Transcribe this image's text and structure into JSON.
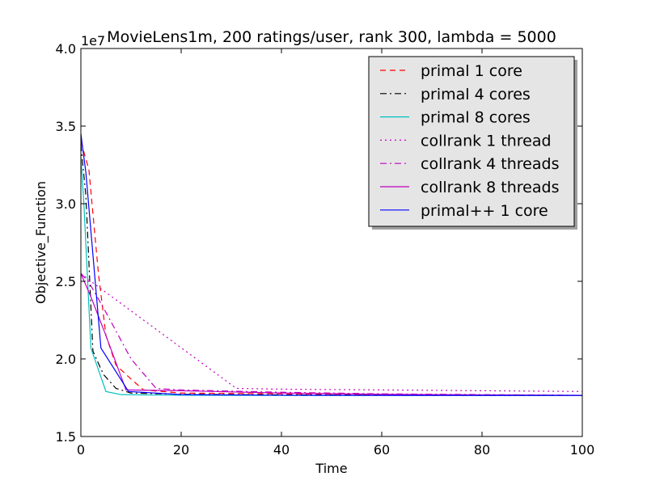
{
  "chart_data": {
    "type": "line",
    "title": "MovieLens1m, 200 ratings/user, rank 300, lambda = 5000",
    "xlabel": "Time",
    "ylabel": "Objective_Function",
    "y_multiplier_label": "1e7",
    "xlim": [
      0,
      100
    ],
    "ylim": [
      1.5,
      4.0
    ],
    "xticks": [
      0,
      20,
      40,
      60,
      80,
      100
    ],
    "xtick_labels": [
      "0",
      "20",
      "40",
      "60",
      "80",
      "100"
    ],
    "yticks": [
      1.5,
      2.0,
      2.5,
      3.0,
      3.5,
      4.0
    ],
    "ytick_labels": [
      "1.5",
      "2.0",
      "2.5",
      "3.0",
      "3.5",
      "4.0"
    ],
    "grid": false,
    "legend_position": "top-right",
    "series": [
      {
        "name": "primal 1 core",
        "color": "#ff0000",
        "dash": "dashed",
        "points": [
          [
            0,
            3.4
          ],
          [
            1.6,
            3.22
          ],
          [
            3.5,
            2.55
          ],
          [
            5.0,
            2.15
          ],
          [
            7.0,
            1.96
          ],
          [
            10.0,
            1.87
          ],
          [
            12.5,
            1.8
          ],
          [
            20,
            1.78
          ],
          [
            40,
            1.775
          ],
          [
            60,
            1.77
          ],
          [
            80,
            1.768
          ],
          [
            100,
            1.765
          ]
        ]
      },
      {
        "name": "primal 4 cores",
        "color": "#000000",
        "dash": "dashdot",
        "points": [
          [
            0,
            3.38
          ],
          [
            1.0,
            3.05
          ],
          [
            2.4,
            2.05
          ],
          [
            4.5,
            1.9
          ],
          [
            7.0,
            1.81
          ],
          [
            10.0,
            1.78
          ],
          [
            20,
            1.772
          ],
          [
            40,
            1.768
          ],
          [
            60,
            1.766
          ],
          [
            80,
            1.765
          ],
          [
            100,
            1.765
          ]
        ]
      },
      {
        "name": "primal 8 cores",
        "color": "#00bfbf",
        "dash": "solid",
        "points": [
          [
            0,
            3.3
          ],
          [
            0.6,
            3.0
          ],
          [
            2.0,
            2.07
          ],
          [
            5.0,
            1.79
          ],
          [
            8.0,
            1.77
          ],
          [
            12,
            1.768
          ],
          [
            20,
            1.766
          ],
          [
            40,
            1.765
          ],
          [
            60,
            1.765
          ],
          [
            80,
            1.765
          ],
          [
            100,
            1.765
          ]
        ]
      },
      {
        "name": "collrank 1 thread",
        "color": "#bf00bf",
        "dash": "dotted",
        "points": [
          [
            0,
            2.55
          ],
          [
            2.0,
            2.5
          ],
          [
            31.0,
            1.81
          ],
          [
            40,
            1.805
          ],
          [
            60,
            1.8
          ],
          [
            80,
            1.795
          ],
          [
            100,
            1.79
          ]
        ]
      },
      {
        "name": "collrank 4 threads",
        "color": "#bf00bf",
        "dash": "dashdot",
        "points": [
          [
            0,
            2.55
          ],
          [
            1.5,
            2.5
          ],
          [
            5.0,
            2.3
          ],
          [
            10.0,
            2.0
          ],
          [
            15.0,
            1.81
          ],
          [
            20,
            1.8
          ],
          [
            40,
            1.785
          ],
          [
            60,
            1.775
          ],
          [
            80,
            1.77
          ],
          [
            100,
            1.765
          ]
        ]
      },
      {
        "name": "collrank 8 threads",
        "color": "#bf00bf",
        "dash": "solid",
        "points": [
          [
            0,
            2.55
          ],
          [
            2.0,
            2.4
          ],
          [
            5.0,
            2.15
          ],
          [
            9.0,
            1.8
          ],
          [
            20,
            1.795
          ],
          [
            40,
            1.78
          ],
          [
            60,
            1.772
          ],
          [
            80,
            1.768
          ],
          [
            100,
            1.765
          ]
        ]
      },
      {
        "name": "primal++ 1 core",
        "color": "#0000ff",
        "dash": "solid",
        "points": [
          [
            0,
            3.45
          ],
          [
            1.0,
            3.2
          ],
          [
            4.0,
            2.07
          ],
          [
            9.5,
            1.79
          ],
          [
            20,
            1.77
          ],
          [
            40,
            1.766
          ],
          [
            60,
            1.765
          ],
          [
            80,
            1.765
          ],
          [
            100,
            1.765
          ]
        ]
      }
    ]
  }
}
